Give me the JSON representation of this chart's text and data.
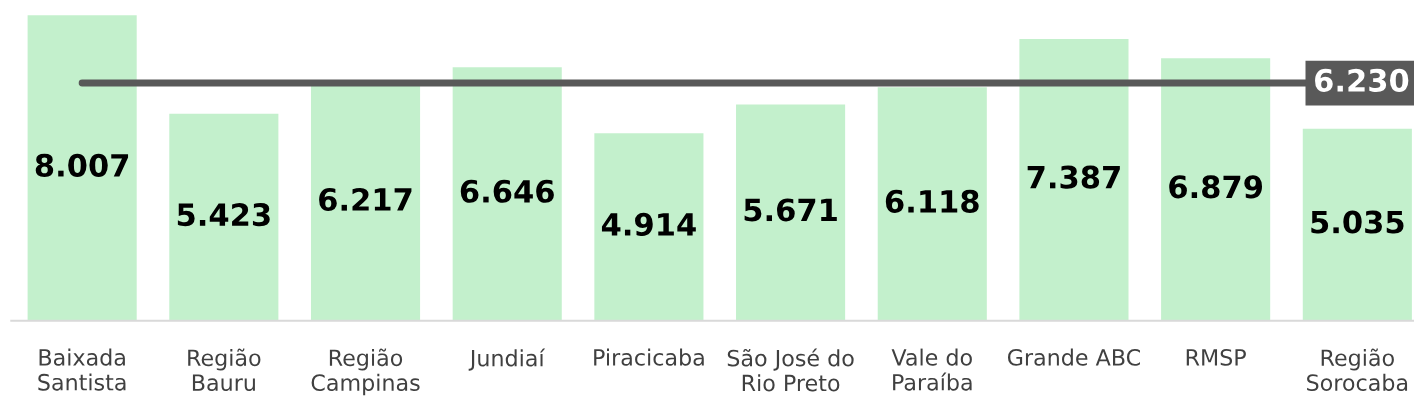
{
  "chart_data": {
    "type": "bar",
    "categories": [
      "Baixada\nSantista",
      "Região\nBauru",
      "Região\nCampinas",
      "Jundiaí",
      "Piracicaba",
      "São José do\nRio Preto",
      "Vale do\nParaíba",
      "Grande ABC",
      "RMSP",
      "Região\nSorocaba"
    ],
    "values": [
      8007,
      5423,
      6217,
      6646,
      4914,
      5671,
      6118,
      7387,
      6879,
      5035
    ],
    "value_labels": [
      "8.007",
      "5.423",
      "6.217",
      "6.646",
      "4.914",
      "5.671",
      "6.118",
      "7.387",
      "6.879",
      "5.035"
    ],
    "color": "#c3f0cc",
    "ref_lines": [
      {
        "axis": "y",
        "value": 6230,
        "label": "6.230",
        "color": "#595959",
        "line_style": "solid"
      }
    ],
    "grid": false,
    "legend": false,
    "tick_labels": "x"
  }
}
